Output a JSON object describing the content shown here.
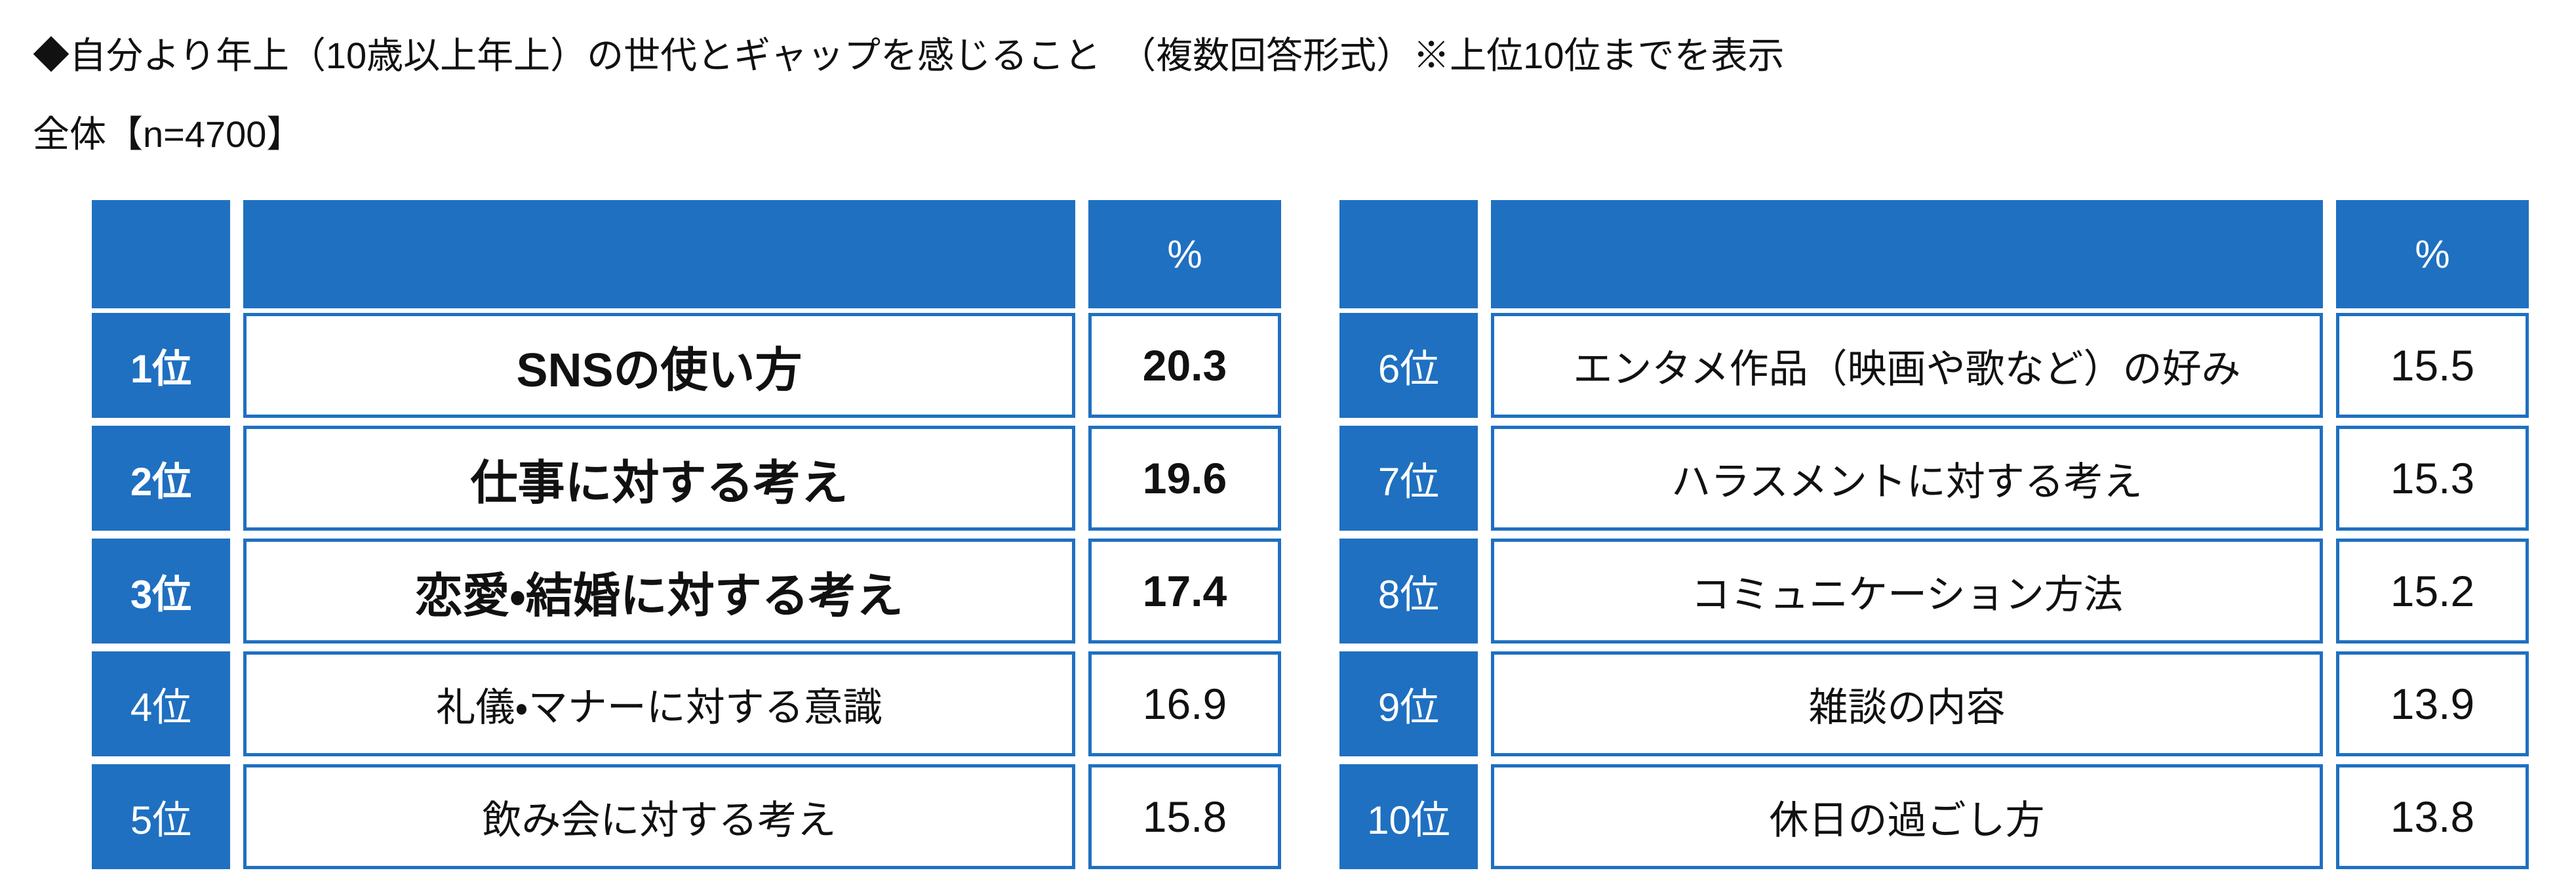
{
  "header": {
    "title": "◆自分より年上（10歳以上年上）の世代とギャップを感じること　（複数回答形式）※上位10位までを表示",
    "subtitle": "全体【n=4700】"
  },
  "tables": [
    {
      "value_header": "%",
      "rows": [
        {
          "rank": "1位",
          "item": "SNSの使い方",
          "value": 20.3
        },
        {
          "rank": "2位",
          "item": "仕事に対する考え",
          "value": 19.6
        },
        {
          "rank": "3位",
          "item": "恋愛・結婚に対する考え",
          "value": 17.4
        },
        {
          "rank": "4位",
          "item": "礼儀・マナーに対する意識",
          "value": 16.9
        },
        {
          "rank": "5位",
          "item": "飲み会に対する考え",
          "value": 15.8
        }
      ]
    },
    {
      "value_header": "%",
      "rows": [
        {
          "rank": "6位",
          "item": "エンタメ作品（映画や歌など）の好み",
          "value": 15.5
        },
        {
          "rank": "7位",
          "item": "ハラスメントに対する考え",
          "value": 15.3
        },
        {
          "rank": "8位",
          "item": "コミュニケーション方法",
          "value": 15.2
        },
        {
          "rank": "9位",
          "item": "雑談の内容",
          "value": 13.9
        },
        {
          "rank": "10位",
          "item": "休日の過ごし方",
          "value": 13.8
        }
      ]
    }
  ]
}
